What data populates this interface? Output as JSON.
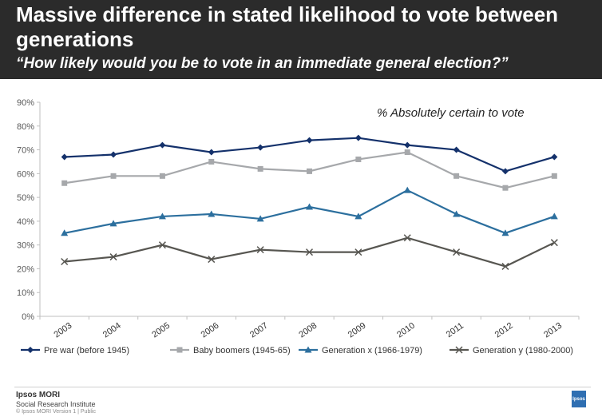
{
  "header": {
    "title": "Massive difference in stated likelihood to vote between generations",
    "subtitle": "“How likely would you be to vote in an immediate general election?”"
  },
  "chart_data": {
    "type": "line",
    "annotation": "% Absolutely certain to vote",
    "categories": [
      "2003",
      "2004",
      "2005",
      "2006",
      "2007",
      "2008",
      "2009",
      "2010",
      "2011",
      "2012",
      "2013"
    ],
    "ylim": [
      0,
      90
    ],
    "yticks": [
      0,
      10,
      20,
      30,
      40,
      50,
      60,
      70,
      80,
      90
    ],
    "ytick_labels": [
      "0%",
      "10%",
      "20%",
      "30%",
      "40%",
      "50%",
      "60%",
      "70%",
      "80%",
      "90%"
    ],
    "grid": false,
    "legend_position": "bottom",
    "series": [
      {
        "name": "Pre war (before 1945)",
        "color": "#14316b",
        "marker": "diamond",
        "values": [
          67,
          68,
          72,
          69,
          71,
          74,
          75,
          72,
          70,
          61,
          67
        ]
      },
      {
        "name": "Baby boomers (1945-65)",
        "color": "#a6a8ab",
        "marker": "square",
        "values": [
          56,
          59,
          59,
          65,
          62,
          61,
          66,
          69,
          59,
          54,
          59
        ]
      },
      {
        "name": "Generation x (1966-1979)",
        "color": "#2c6f9e",
        "marker": "triangle",
        "values": [
          35,
          39,
          42,
          43,
          41,
          46,
          42,
          53,
          43,
          35,
          42
        ]
      },
      {
        "name": "Generation y (1980-2000)",
        "color": "#575651",
        "marker": "cross",
        "values": [
          23,
          25,
          30,
          24,
          28,
          27,
          27,
          33,
          27,
          21,
          31
        ]
      }
    ]
  },
  "footer": {
    "brand": "Ipsos MORI",
    "unit": "Social Research Institute",
    "small": "© Ipsos MORI    Version 1 | Public",
    "logo": "Ipsos"
  }
}
